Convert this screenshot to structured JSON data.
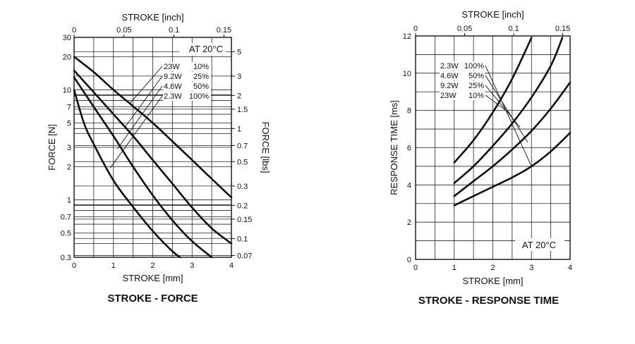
{
  "chart_data": [
    {
      "type": "line",
      "title": "STROKE - FORCE",
      "xlabel": "STROKE [mm]",
      "ylabel": "FORCE [N]",
      "x2label": "STROKE [inch]",
      "y2label": "FORCE [lbs]",
      "xlim": [
        0,
        4
      ],
      "ylim": [
        0.3,
        30
      ],
      "y_scale": "log",
      "grid": true,
      "x_ticks": [
        "0",
        "1",
        "2",
        "3",
        "4"
      ],
      "y_ticks": [
        {
          "v": 0.3,
          "label": "0.3"
        },
        {
          "v": 0.5,
          "label": "0.5"
        },
        {
          "v": 0.7,
          "label": "0.7"
        },
        {
          "v": 1,
          "label": "1"
        },
        {
          "v": 2,
          "label": "2"
        },
        {
          "v": 3,
          "label": "3"
        },
        {
          "v": 5,
          "label": "5"
        },
        {
          "v": 7,
          "label": "7"
        },
        {
          "v": 10,
          "label": "10"
        },
        {
          "v": 20,
          "label": "20"
        },
        {
          "v": 30,
          "label": "30"
        }
      ],
      "x2_ticks": [
        {
          "v": 0,
          "label": "0"
        },
        {
          "v": 1.27,
          "label": "0.05"
        },
        {
          "v": 2.54,
          "label": "0.1"
        },
        {
          "v": 3.81,
          "label": "0.15"
        }
      ],
      "y2_ticks": [
        {
          "v": 0.311,
          "label": "0.07"
        },
        {
          "v": 0.445,
          "label": "0.1"
        },
        {
          "v": 0.667,
          "label": "0.15"
        },
        {
          "v": 0.89,
          "label": "0.2"
        },
        {
          "v": 1.334,
          "label": "0.3"
        },
        {
          "v": 2.224,
          "label": "0.5"
        },
        {
          "v": 3.114,
          "label": "0.7"
        },
        {
          "v": 4.448,
          "label": "1"
        },
        {
          "v": 6.672,
          "label": "1.5"
        },
        {
          "v": 8.896,
          "label": "2"
        },
        {
          "v": 13.34,
          "label": "3"
        },
        {
          "v": 22.24,
          "label": "5"
        }
      ],
      "annotation": "AT 20°C",
      "legend": [
        {
          "power": "23W",
          "duty": "10%",
          "arrow_x": 1.4,
          "arrow_y": 7.4
        },
        {
          "power": "9.2W",
          "duty": "25%",
          "arrow_x": 1.3,
          "arrow_y": 4.6
        },
        {
          "power": "4.6W",
          "duty": "50%",
          "arrow_x": 1.1,
          "arrow_y": 2.9
        },
        {
          "power": "2.3W",
          "duty": "100%",
          "arrow_x": 0.92,
          "arrow_y": 1.95
        }
      ],
      "series": [
        {
          "x": [
            0,
            0.5,
            1,
            1.5,
            2,
            2.5,
            3,
            3.5,
            4
          ],
          "y": [
            20,
            14.5,
            10,
            7.1,
            5,
            3.4,
            2.3,
            1.55,
            1.05
          ]
        },
        {
          "x": [
            0,
            0.5,
            1,
            1.5,
            2,
            2.5,
            3,
            3.5,
            4
          ],
          "y": [
            15,
            9.5,
            6,
            3.8,
            2.3,
            1.4,
            0.85,
            0.55,
            0.4
          ]
        },
        {
          "x": [
            0,
            0.5,
            1,
            1.5,
            2,
            2.5,
            3,
            3.5
          ],
          "y": [
            13,
            7,
            3.8,
            2,
            1.1,
            0.65,
            0.42,
            0.3
          ]
        },
        {
          "x": [
            0,
            0.25,
            0.5,
            1,
            1.5,
            2,
            2.5,
            2.7
          ],
          "y": [
            10,
            5,
            3.2,
            1.5,
            0.86,
            0.52,
            0.34,
            0.3
          ]
        }
      ]
    },
    {
      "type": "line",
      "title": "STROKE - RESPONSE TIME",
      "xlabel": "STROKE [mm]",
      "ylabel": "RESPONSE TIME [ms]",
      "x2label": "STROKE [inch]",
      "xlim": [
        0,
        4
      ],
      "ylim": [
        0,
        12
      ],
      "grid": true,
      "x_ticks": [
        "0",
        "1",
        "2",
        "3",
        "4"
      ],
      "y_ticks": [
        "0",
        "2",
        "4",
        "6",
        "8",
        "10",
        "12"
      ],
      "x2_ticks": [
        {
          "v": 0,
          "label": "0"
        },
        {
          "v": 1.27,
          "label": "0.05"
        },
        {
          "v": 2.54,
          "label": "0.1"
        },
        {
          "v": 3.81,
          "label": "0.15"
        }
      ],
      "annotation": "AT 20°C",
      "legend": [
        {
          "power": "2.3W",
          "duty": "100%",
          "arrow_x": 3.0,
          "arrow_y": 5.0
        },
        {
          "power": "4.6W",
          "duty": "50%",
          "arrow_x": 2.9,
          "arrow_y": 6.3
        },
        {
          "power": "9.2W",
          "duty": "25%",
          "arrow_x": 2.7,
          "arrow_y": 7.1
        },
        {
          "power": "23W",
          "duty": "10%",
          "arrow_x": 2.4,
          "arrow_y": 7.9
        }
      ],
      "series": [
        {
          "x": [
            1,
            1.5,
            2,
            2.5,
            3,
            3.5,
            4
          ],
          "y": [
            2.9,
            3.4,
            3.9,
            4.4,
            5.0,
            5.8,
            6.8
          ]
        },
        {
          "x": [
            1,
            1.5,
            2,
            2.5,
            3,
            3.5,
            4
          ],
          "y": [
            3.4,
            4.2,
            5.0,
            5.9,
            6.9,
            8.1,
            9.5
          ]
        },
        {
          "x": [
            1,
            1.5,
            2,
            2.5,
            3,
            3.5,
            3.8
          ],
          "y": [
            4.1,
            5.0,
            6.1,
            7.3,
            8.7,
            10.4,
            11.9
          ]
        },
        {
          "x": [
            1,
            1.5,
            2,
            2.5,
            3.0
          ],
          "y": [
            5.2,
            6.4,
            7.9,
            9.7,
            11.9
          ]
        }
      ]
    }
  ]
}
